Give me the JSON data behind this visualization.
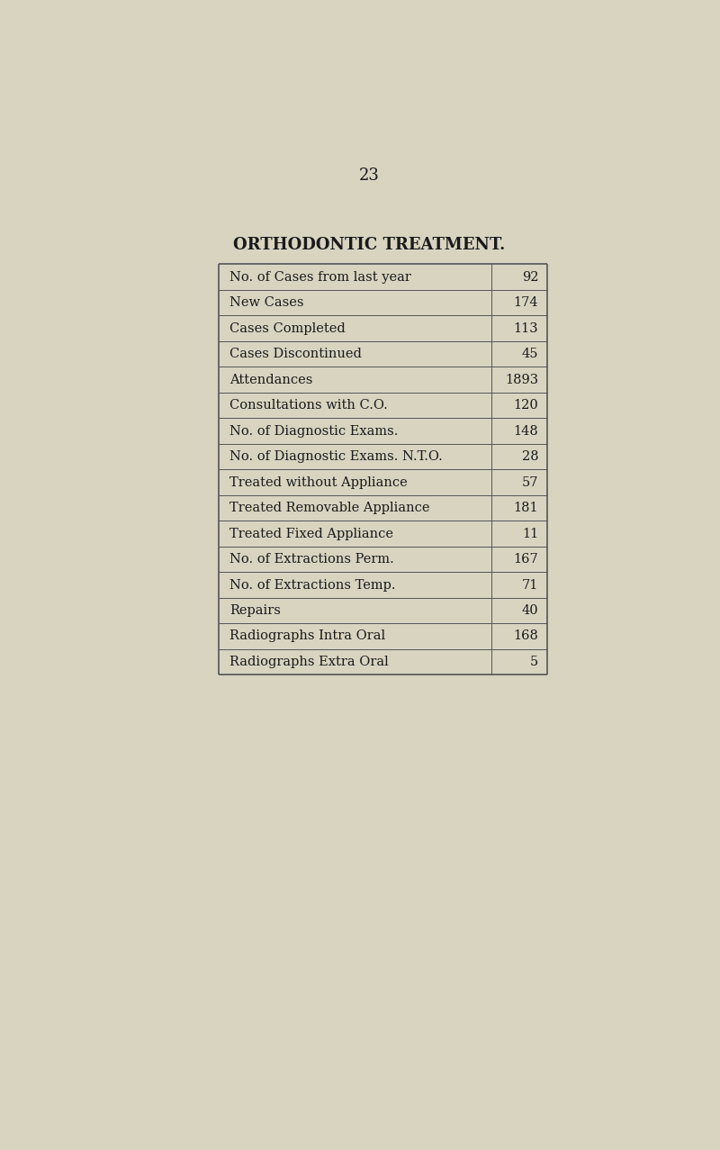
{
  "page_number": "23",
  "title": "ORTHODONTIC TREATMENT.",
  "background_color": "#d8d4c0",
  "rows": [
    [
      "No. of Cases from last year",
      "92"
    ],
    [
      "New Cases",
      "174"
    ],
    [
      "Cases Completed",
      "113"
    ],
    [
      "Cases Discontinued",
      "45"
    ],
    [
      "Attendances",
      "1893"
    ],
    [
      "Consultations with C.O.",
      "120"
    ],
    [
      "No. of Diagnostic Exams.",
      "148"
    ],
    [
      "No. of Diagnostic Exams. N.T.O.",
      "28"
    ],
    [
      "Treated without Appliance",
      "57"
    ],
    [
      "Treated Removable Appliance",
      "181"
    ],
    [
      "Treated Fixed Appliance",
      "11"
    ],
    [
      "No. of Extractions Perm.",
      "167"
    ],
    [
      "No. of Extractions Temp.",
      "71"
    ],
    [
      "Repairs",
      "40"
    ],
    [
      "Radiographs Intra Oral",
      "168"
    ],
    [
      "Radiographs Extra Oral",
      "5"
    ]
  ],
  "text_color": "#1a1a1a",
  "line_color": "#555555",
  "title_fontsize": 13,
  "row_fontsize": 10.5,
  "page_num_fontsize": 13
}
